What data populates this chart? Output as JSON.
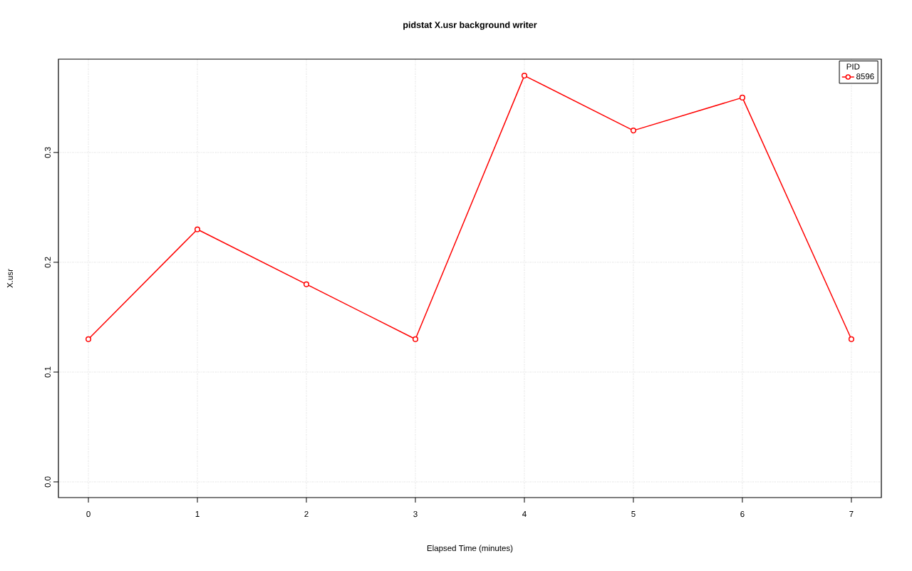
{
  "chart_data": {
    "type": "line",
    "title": "pidstat X.usr background writer",
    "xlabel": "Elapsed Time (minutes)",
    "ylabel": "X.usr",
    "legend_title": "PID",
    "x": [
      0,
      1,
      2,
      3,
      4,
      5,
      6,
      7
    ],
    "series": [
      {
        "name": "8596",
        "color": "#ff0000",
        "values": [
          0.13,
          0.23,
          0.18,
          0.13,
          0.37,
          0.32,
          0.35,
          0.13
        ]
      }
    ],
    "xlim": [
      -0.275,
      7.275
    ],
    "ylim": [
      -0.0143,
      0.385
    ],
    "xticks": [
      0,
      1,
      2,
      3,
      4,
      5,
      6,
      7
    ],
    "yticks": [
      {
        "value": 0,
        "label": "0.0"
      },
      {
        "value": 0.1,
        "label": "0.1"
      },
      {
        "value": 0.2,
        "label": "0.2"
      },
      {
        "value": 0.3,
        "label": "0.3"
      }
    ],
    "grid": true,
    "legend": "top right",
    "marker": "circle",
    "line_style": "solid"
  }
}
